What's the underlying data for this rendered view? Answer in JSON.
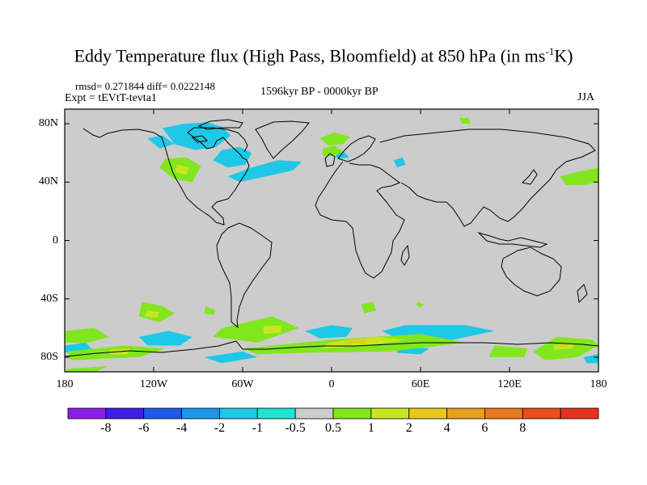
{
  "chart_data": {
    "type": "heatmap",
    "title_main": "Eddy Temperature flux (High Pass, Bloomfield) at 850 hPa (in ms",
    "title_sup": "-1",
    "title_tail": "K)",
    "rmsd_text": "rmsd= 0.271844 diff= 0.0222148",
    "expt_text": "Expt = tEVtT-tevta1",
    "period_text": "1596kyr BP - 0000kyr BP",
    "season_text": "JJA",
    "x_ticks": [
      {
        "value": -180,
        "label": "180"
      },
      {
        "value": -120,
        "label": "120W"
      },
      {
        "value": -60,
        "label": "60W"
      },
      {
        "value": 0,
        "label": "0"
      },
      {
        "value": 60,
        "label": "60E"
      },
      {
        "value": 120,
        "label": "120E"
      },
      {
        "value": 180,
        "label": "180"
      }
    ],
    "y_ticks": [
      {
        "value": 80,
        "label": "80N"
      },
      {
        "value": 40,
        "label": "40N"
      },
      {
        "value": 0,
        "label": "0"
      },
      {
        "value": -40,
        "label": "40S"
      },
      {
        "value": -80,
        "label": "80S"
      }
    ],
    "xlim": [
      -180,
      180
    ],
    "ylim": [
      -90,
      90
    ],
    "background_color": "#cccccc",
    "colorbar": {
      "colors": [
        "#8c1ee6",
        "#3c1ee6",
        "#1e5ae6",
        "#1e96e6",
        "#1ec8e6",
        "#1ee6d2",
        "#cccccc",
        "#82e61e",
        "#c8e61e",
        "#e6c81e",
        "#e6a01e",
        "#e6781e",
        "#e6501e",
        "#e6321e"
      ],
      "labels": [
        "-8",
        "-6",
        "-4",
        "-2",
        "-1",
        "-0.5",
        "0.5",
        "1",
        "2",
        "4",
        "6",
        "8"
      ]
    },
    "anomaly_regions": [
      {
        "color": "#1ec8e6",
        "points": [
          [
            -114,
            77
          ],
          [
            -100,
            80
          ],
          [
            -84,
            81
          ],
          [
            -74,
            78
          ],
          [
            -68,
            72
          ],
          [
            -78,
            64
          ],
          [
            -92,
            62
          ],
          [
            -106,
            66
          ]
        ]
      },
      {
        "color": "#1ec8e6",
        "points": [
          [
            -74,
            62
          ],
          [
            -62,
            64
          ],
          [
            -54,
            60
          ],
          [
            -58,
            52
          ],
          [
            -70,
            50
          ],
          [
            -80,
            55
          ]
        ]
      },
      {
        "color": "#1ec8e6",
        "points": [
          [
            -70,
            44
          ],
          [
            -54,
            50
          ],
          [
            -36,
            55
          ],
          [
            -20,
            54
          ],
          [
            -26,
            48
          ],
          [
            -44,
            44
          ],
          [
            -62,
            40
          ]
        ]
      },
      {
        "color": "#1ec8e6",
        "points": [
          [
            -124,
            70
          ],
          [
            -114,
            72
          ],
          [
            -106,
            66
          ],
          [
            -116,
            63
          ]
        ]
      },
      {
        "color": "#1ec8e6",
        "points": [
          [
            0,
            63
          ],
          [
            8,
            61
          ],
          [
            12,
            57
          ],
          [
            4,
            56
          ]
        ]
      },
      {
        "color": "#1ec8e6",
        "points": [
          [
            42,
            55
          ],
          [
            48,
            57
          ],
          [
            50,
            52
          ],
          [
            44,
            50
          ]
        ]
      },
      {
        "color": "#82e61e",
        "points": [
          [
            -112,
            56
          ],
          [
            -98,
            57
          ],
          [
            -88,
            51
          ],
          [
            -94,
            40
          ],
          [
            -106,
            42
          ],
          [
            -116,
            50
          ]
        ]
      },
      {
        "color": "#c8e61e",
        "points": [
          [
            -104,
            52
          ],
          [
            -96,
            50
          ],
          [
            -98,
            45
          ],
          [
            -106,
            47
          ]
        ]
      },
      {
        "color": "#82e61e",
        "points": [
          [
            -8,
            70
          ],
          [
            2,
            74
          ],
          [
            12,
            71
          ],
          [
            8,
            66
          ],
          [
            -2,
            65
          ]
        ]
      },
      {
        "color": "#82e61e",
        "points": [
          [
            86,
            84
          ],
          [
            92,
            84
          ],
          [
            94,
            80
          ],
          [
            88,
            80
          ]
        ]
      },
      {
        "color": "#82e61e",
        "points": [
          [
            -6,
            63
          ],
          [
            2,
            65
          ],
          [
            8,
            61
          ],
          [
            2,
            58
          ],
          [
            -6,
            58
          ]
        ]
      },
      {
        "color": "#82e61e",
        "points": [
          [
            154,
            44
          ],
          [
            166,
            47
          ],
          [
            180,
            50
          ],
          [
            180,
            40
          ],
          [
            170,
            38
          ],
          [
            158,
            38
          ]
        ]
      },
      {
        "color": "#82e61e",
        "points": [
          [
            20,
            -44
          ],
          [
            28,
            -42
          ],
          [
            30,
            -48
          ],
          [
            22,
            -50
          ]
        ]
      },
      {
        "color": "#82e61e",
        "points": [
          [
            -128,
            -42
          ],
          [
            -114,
            -45
          ],
          [
            -106,
            -50
          ],
          [
            -116,
            -56
          ],
          [
            -130,
            -52
          ]
        ]
      },
      {
        "color": "#c8e61e",
        "points": [
          [
            -124,
            -48
          ],
          [
            -116,
            -49
          ],
          [
            -118,
            -53
          ],
          [
            -126,
            -52
          ]
        ]
      },
      {
        "color": "#82e61e",
        "points": [
          [
            -85,
            -45
          ],
          [
            -78,
            -48
          ],
          [
            -80,
            -51
          ],
          [
            -86,
            -50
          ]
        ]
      },
      {
        "color": "#82e61e",
        "points": [
          [
            -180,
            -62
          ],
          [
            -160,
            -60
          ],
          [
            -150,
            -66
          ],
          [
            -164,
            -70
          ],
          [
            -180,
            -70
          ]
        ]
      },
      {
        "color": "#82e61e",
        "points": [
          [
            -74,
            -60
          ],
          [
            -40,
            -52
          ],
          [
            -22,
            -60
          ],
          [
            -50,
            -70
          ],
          [
            -80,
            -66
          ]
        ]
      },
      {
        "color": "#c8e61e",
        "points": [
          [
            -46,
            -59
          ],
          [
            -34,
            -58
          ],
          [
            -34,
            -63
          ],
          [
            -46,
            -64
          ]
        ]
      },
      {
        "color": "#1ec8e6",
        "points": [
          [
            -130,
            -66
          ],
          [
            -110,
            -62
          ],
          [
            -94,
            -66
          ],
          [
            -102,
            -72
          ],
          [
            -124,
            -72
          ]
        ]
      },
      {
        "color": "#1ec8e6",
        "points": [
          [
            -180,
            -72
          ],
          [
            -166,
            -70
          ],
          [
            -160,
            -76
          ],
          [
            -180,
            -77
          ]
        ]
      },
      {
        "color": "#1ec8e6",
        "points": [
          [
            -18,
            -62
          ],
          [
            0,
            -58
          ],
          [
            14,
            -60
          ],
          [
            10,
            -66
          ],
          [
            -8,
            -67
          ]
        ]
      },
      {
        "color": "#1ec8e6",
        "points": [
          [
            34,
            -62
          ],
          [
            50,
            -58
          ],
          [
            90,
            -58
          ],
          [
            110,
            -62
          ],
          [
            82,
            -68
          ],
          [
            46,
            -68
          ]
        ]
      },
      {
        "color": "#1ec8e6",
        "points": [
          [
            -86,
            -80
          ],
          [
            -60,
            -76
          ],
          [
            -50,
            -80
          ],
          [
            -74,
            -84
          ]
        ]
      },
      {
        "color": "#1ec8e6",
        "points": [
          [
            44,
            -72
          ],
          [
            66,
            -74
          ],
          [
            60,
            -78
          ],
          [
            44,
            -77
          ]
        ]
      },
      {
        "color": "#82e61e",
        "points": [
          [
            -60,
            -74
          ],
          [
            0,
            -68
          ],
          [
            60,
            -64
          ],
          [
            90,
            -70
          ],
          [
            40,
            -76
          ],
          [
            -20,
            -77
          ],
          [
            -50,
            -78
          ]
        ]
      },
      {
        "color": "#c8e61e",
        "points": [
          [
            -2,
            -70
          ],
          [
            30,
            -66
          ],
          [
            50,
            -68
          ],
          [
            24,
            -72
          ],
          [
            -6,
            -74
          ]
        ]
      },
      {
        "color": "#e6c81e",
        "points": [
          [
            10,
            -69
          ],
          [
            24,
            -68
          ],
          [
            22,
            -70
          ],
          [
            10,
            -71
          ]
        ]
      },
      {
        "color": "#82e61e",
        "points": [
          [
            -178,
            -76
          ],
          [
            -140,
            -72
          ],
          [
            -112,
            -74
          ],
          [
            -130,
            -80
          ],
          [
            -176,
            -82
          ]
        ]
      },
      {
        "color": "#c8e61e",
        "points": [
          [
            -150,
            -75
          ],
          [
            -136,
            -74
          ],
          [
            -138,
            -78
          ],
          [
            -150,
            -78
          ]
        ]
      },
      {
        "color": "#82e61e",
        "points": [
          [
            106,
            -80
          ],
          [
            110,
            -72
          ],
          [
            132,
            -74
          ],
          [
            130,
            -80
          ]
        ]
      },
      {
        "color": "#82e61e",
        "points": [
          [
            136,
            -76
          ],
          [
            152,
            -66
          ],
          [
            176,
            -68
          ],
          [
            180,
            -72
          ],
          [
            166,
            -80
          ],
          [
            144,
            -82
          ]
        ]
      },
      {
        "color": "#c8e61e",
        "points": [
          [
            150,
            -72
          ],
          [
            164,
            -70
          ],
          [
            162,
            -74
          ],
          [
            150,
            -75
          ]
        ]
      },
      {
        "color": "#e6c81e",
        "points": [
          [
            154,
            -71
          ],
          [
            160,
            -71
          ],
          [
            158,
            -73
          ],
          [
            154,
            -73
          ]
        ]
      },
      {
        "color": "#1ec8e6",
        "points": [
          [
            170,
            -80
          ],
          [
            180,
            -78
          ],
          [
            180,
            -84
          ],
          [
            172,
            -84
          ]
        ]
      },
      {
        "color": "#82e61e",
        "points": [
          [
            58,
            -42
          ],
          [
            62,
            -44
          ],
          [
            60,
            -46
          ],
          [
            57,
            -44
          ]
        ]
      },
      {
        "color": "#82e61e",
        "points": [
          [
            -178,
            -88
          ],
          [
            -150,
            -86
          ],
          [
            -160,
            -90
          ],
          [
            -180,
            -90
          ]
        ]
      }
    ]
  }
}
